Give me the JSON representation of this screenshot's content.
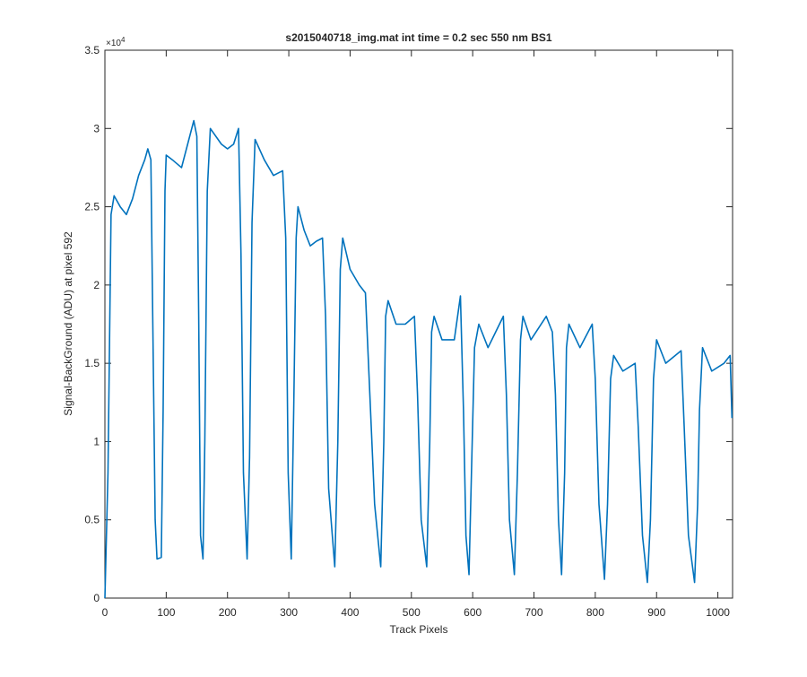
{
  "chart_data": {
    "type": "line",
    "title": "s2015040718_img.mat int time = 0.2 sec  550 nm BS1",
    "x_label": "Track Pixels",
    "y_label": "Signal-BackGround (ADU) at pixel 592",
    "y_exponent_base": "×10",
    "y_exponent_power": "4",
    "xlim": [
      0,
      1024
    ],
    "ylim": [
      0,
      3.5
    ],
    "xticks": [
      0,
      100,
      200,
      300,
      400,
      500,
      600,
      700,
      800,
      900,
      1000
    ],
    "yticks": [
      0,
      0.5,
      1,
      1.5,
      2,
      2.5,
      3,
      3.5
    ],
    "grid": false,
    "series": [
      {
        "color": "#0072BD",
        "x": [
          0,
          5,
          10,
          15,
          25,
          35,
          45,
          55,
          65,
          70,
          75,
          78,
          82,
          85,
          92,
          95,
          98,
          100,
          110,
          125,
          135,
          145,
          150,
          153,
          156,
          160,
          163,
          167,
          172,
          190,
          200,
          210,
          218,
          222,
          226,
          232,
          236,
          240,
          245,
          260,
          275,
          290,
          295,
          299,
          304,
          308,
          312,
          315,
          325,
          335,
          345,
          355,
          360,
          365,
          375,
          380,
          384,
          388,
          400,
          415,
          425,
          430,
          440,
          450,
          455,
          458,
          462,
          475,
          490,
          505,
          510,
          516,
          525,
          530,
          533,
          537,
          550,
          570,
          580,
          585,
          589,
          594,
          598,
          603,
          610,
          625,
          650,
          655,
          660,
          668,
          673,
          678,
          682,
          695,
          720,
          730,
          735,
          740,
          745,
          750,
          753,
          757,
          775,
          795,
          800,
          806,
          815,
          820,
          825,
          830,
          845,
          865,
          870,
          877,
          885,
          890,
          895,
          900,
          915,
          940,
          945,
          952,
          962,
          967,
          970,
          975,
          990,
          1010,
          1020,
          1023
        ],
        "values": [
          0,
          0.8,
          2.45,
          2.57,
          2.5,
          2.45,
          2.55,
          2.7,
          2.8,
          2.87,
          2.8,
          1.8,
          0.5,
          0.25,
          0.26,
          1.2,
          2.6,
          2.83,
          2.8,
          2.75,
          2.9,
          3.05,
          2.95,
          1.8,
          0.4,
          0.25,
          1.0,
          2.6,
          3.0,
          2.9,
          2.87,
          2.9,
          3.0,
          2.2,
          0.8,
          0.25,
          0.9,
          2.4,
          2.93,
          2.8,
          2.7,
          2.73,
          2.3,
          0.8,
          0.25,
          1.2,
          2.3,
          2.5,
          2.35,
          2.25,
          2.28,
          2.3,
          1.8,
          0.7,
          0.2,
          1.0,
          2.1,
          2.3,
          2.1,
          2.0,
          1.95,
          1.5,
          0.6,
          0.2,
          1.0,
          1.8,
          1.9,
          1.75,
          1.75,
          1.8,
          1.3,
          0.5,
          0.2,
          1.0,
          1.7,
          1.8,
          1.65,
          1.65,
          1.93,
          1.2,
          0.4,
          0.15,
          0.8,
          1.6,
          1.75,
          1.6,
          1.8,
          1.3,
          0.5,
          0.15,
          0.8,
          1.65,
          1.8,
          1.65,
          1.8,
          1.7,
          1.3,
          0.5,
          0.15,
          0.8,
          1.6,
          1.75,
          1.6,
          1.75,
          1.4,
          0.6,
          0.12,
          0.6,
          1.4,
          1.55,
          1.45,
          1.5,
          1.1,
          0.4,
          0.1,
          0.5,
          1.4,
          1.65,
          1.5,
          1.58,
          1.1,
          0.4,
          0.1,
          0.6,
          1.2,
          1.6,
          1.45,
          1.5,
          1.55,
          1.15
        ]
      }
    ]
  }
}
